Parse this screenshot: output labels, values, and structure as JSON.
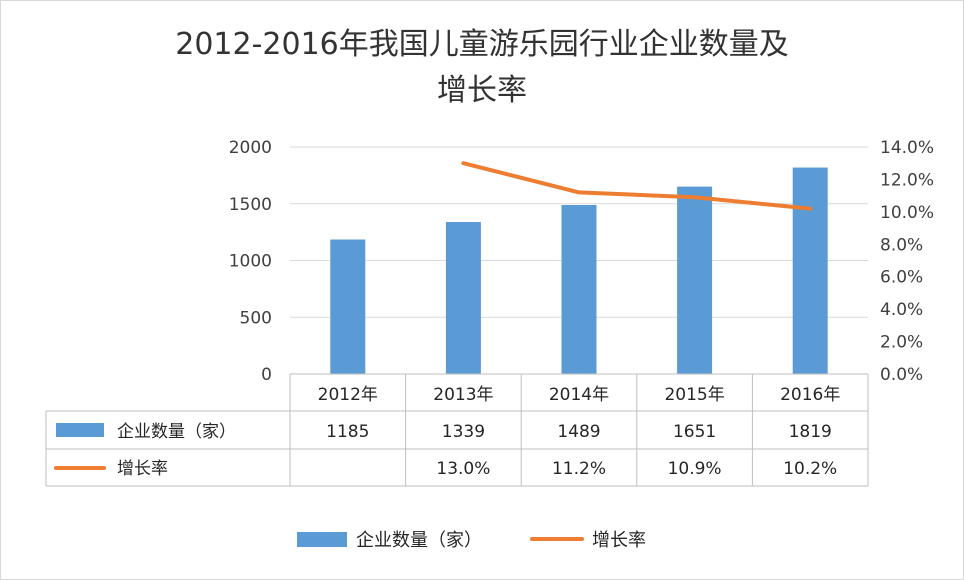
{
  "chart_data": {
    "type": "bar",
    "title_line1": "2012-2016年我国儿童游乐园行业企业数量及",
    "title_line2": "增长率",
    "categories": [
      "2012年",
      "2013年",
      "2014年",
      "2015年",
      "2016年"
    ],
    "series": [
      {
        "name": "企业数量（家）",
        "type": "bar",
        "axis": "left",
        "color": "#5B9BD5",
        "values": [
          1185,
          1339,
          1489,
          1651,
          1819
        ],
        "labels": [
          "1185",
          "1339",
          "1489",
          "1651",
          "1819"
        ]
      },
      {
        "name": "增长率",
        "type": "line",
        "axis": "right",
        "color": "#ED7D31",
        "values": [
          null,
          13.0,
          11.2,
          10.9,
          10.2
        ],
        "labels": [
          "",
          "13.0%",
          "11.2%",
          "10.9%",
          "10.2%"
        ]
      }
    ],
    "y_left": {
      "ylim": [
        0,
        2000
      ],
      "ticks": [
        "0",
        "500",
        "1000",
        "1500",
        "2000"
      ]
    },
    "y_right": {
      "ylim": [
        0,
        14
      ],
      "ticks": [
        "0.0%",
        "2.0%",
        "4.0%",
        "6.0%",
        "8.0%",
        "10.0%",
        "12.0%",
        "14.0%"
      ]
    },
    "grid": true,
    "data_table": true,
    "legend_position": "bottom"
  }
}
